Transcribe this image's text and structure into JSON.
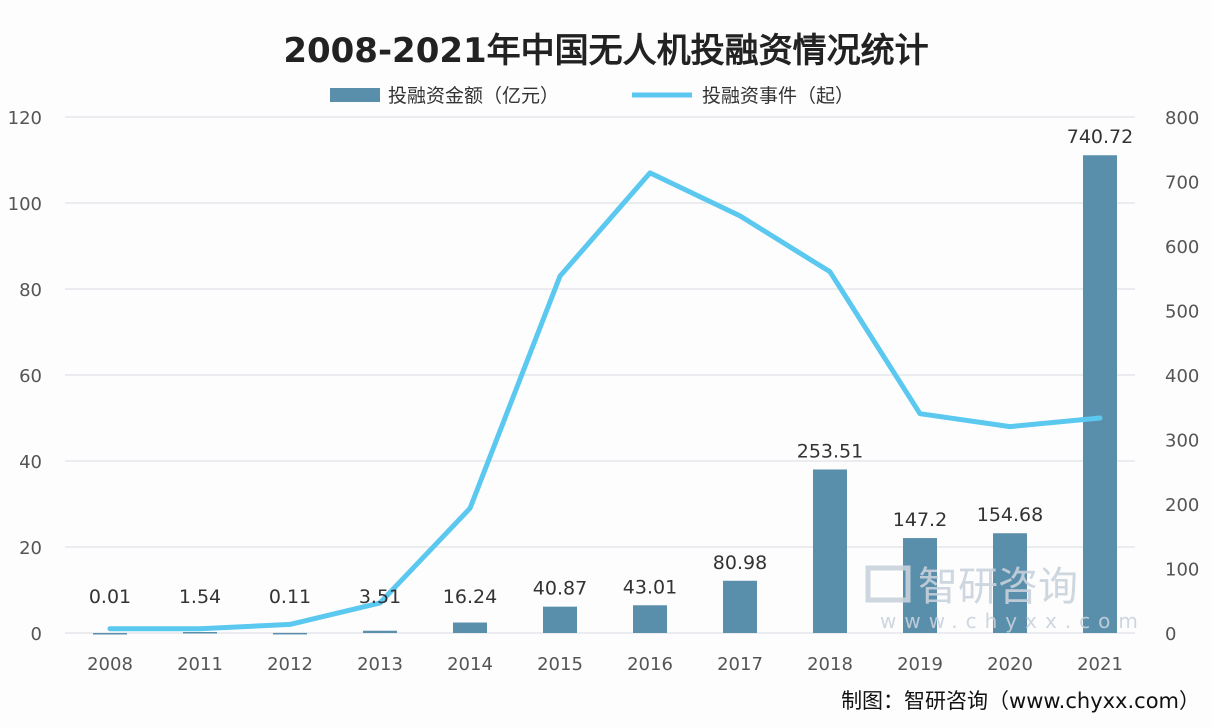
{
  "chart_data": {
    "type": "bar+line",
    "title": "2008-2021年中国无人机投融资情况统计",
    "categories": [
      "2008",
      "2011",
      "2012",
      "2013",
      "2014",
      "2015",
      "2016",
      "2017",
      "2018",
      "2019",
      "2020",
      "2021"
    ],
    "series": [
      {
        "name": "投融资金额（亿元）",
        "type": "bar",
        "axis": "right",
        "color": "#5a8fab",
        "values": [
          0.01,
          1.54,
          0.11,
          3.51,
          16.24,
          40.87,
          43.01,
          80.98,
          253.51,
          147.2,
          154.68,
          740.72
        ],
        "labels": [
          "0.01",
          "1.54",
          "0.11",
          "3.51",
          "16.24",
          "40.87",
          "43.01",
          "80.98",
          "253.51",
          "147.2",
          "154.68",
          "740.72"
        ]
      },
      {
        "name": "投融资事件（起）",
        "type": "line",
        "axis": "left",
        "color": "#5bc8f0",
        "values": [
          1,
          1,
          2,
          7,
          29,
          83,
          107,
          97,
          84,
          51,
          48,
          50
        ]
      }
    ],
    "y_left": {
      "range": [
        0,
        120
      ],
      "ticks": [
        "0",
        "20",
        "40",
        "60",
        "80",
        "100",
        "120"
      ]
    },
    "y_right": {
      "range": [
        0,
        800
      ],
      "ticks": [
        "0",
        "100",
        "200",
        "300",
        "400",
        "500",
        "600",
        "700",
        "800"
      ]
    },
    "grid": true,
    "legend": "top"
  },
  "watermark": {
    "text": "智研咨询",
    "url": "www.chyxx.com"
  },
  "source": "制图：智研咨询（www.chyxx.com）"
}
